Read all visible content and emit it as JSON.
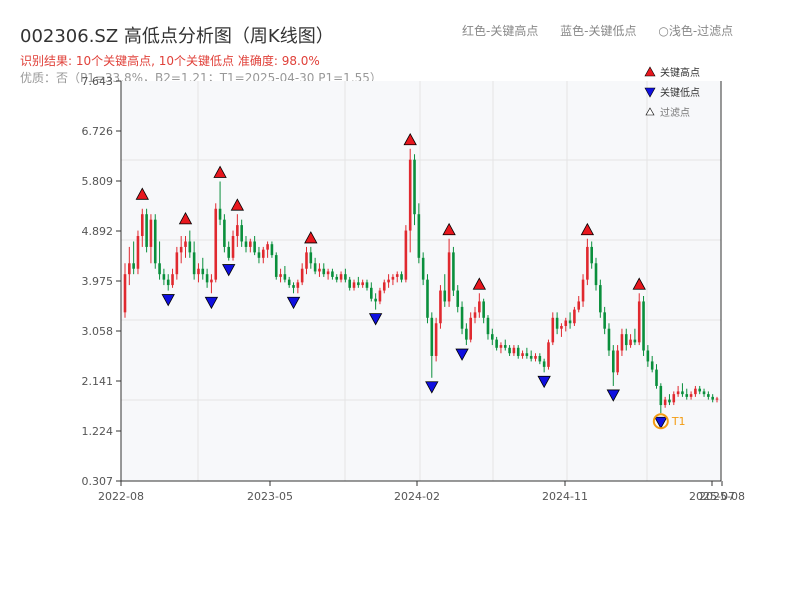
{
  "header": {
    "title": "002306.SZ 高低点分析图（周K线图）",
    "result_line": "识别结果: 10个关键高点, 10个关键低点   准确度: 98.0%",
    "quality_line": "优质：否（P1=33.8%，B2=1.21；T1=2025-04-30 P1=1.55）"
  },
  "top_legend": {
    "red": "红色-关键高点",
    "blue": "蓝色-关键低点",
    "light": "○浅色-过滤点"
  },
  "colors": {
    "up": "#e0292f",
    "down": "#0a8f3c",
    "high_marker": "#e8171e",
    "low_marker": "#1010e0",
    "t1_ring": "#f39c12",
    "grid": "#e4e4e4",
    "plot_bg": "#f7f8fa"
  },
  "chart_data": {
    "type": "candlestick",
    "title": "002306.SZ 高低点分析图（周K线图）",
    "y_ticks": [
      "0.307",
      "1.224",
      "2.141",
      "3.058",
      "3.975",
      "4.892",
      "5.809",
      "6.726",
      "7.643"
    ],
    "ylim": [
      0.307,
      7.643
    ],
    "x_ticks": [
      "2022-08",
      "2023-05",
      "2024-02",
      "2024-11",
      "2025-07",
      "2025-08"
    ],
    "legend": [
      {
        "label": "关键高点",
        "marker": "high"
      },
      {
        "label": "关键低点",
        "marker": "low"
      },
      {
        "label": "过滤点",
        "marker": "filtered"
      }
    ],
    "key_highs": [
      5.4,
      4.95,
      5.8,
      5.2,
      4.6,
      6.4,
      4.75,
      3.75,
      4.75,
      3.75
    ],
    "key_lows": [
      3.8,
      3.75,
      4.35,
      3.75,
      3.45,
      2.2,
      2.8,
      2.3,
      2.05,
      1.55
    ],
    "annotation": {
      "label": "T1",
      "value": 1.55
    },
    "candles_ohlc": [
      [
        3.4,
        4.3,
        3.3,
        4.1
      ],
      [
        4.1,
        4.6,
        3.9,
        4.3
      ],
      [
        4.3,
        4.7,
        4.1,
        4.2
      ],
      [
        4.2,
        4.9,
        4.1,
        4.8
      ],
      [
        4.8,
        5.3,
        4.6,
        5.2
      ],
      [
        5.2,
        5.3,
        4.5,
        4.6
      ],
      [
        4.6,
        5.2,
        4.3,
        5.1
      ],
      [
        5.1,
        5.2,
        4.2,
        4.3
      ],
      [
        4.3,
        4.7,
        4.0,
        4.1
      ],
      [
        4.1,
        4.2,
        3.9,
        4.0
      ],
      [
        4.0,
        4.1,
        3.8,
        3.9
      ],
      [
        3.9,
        4.2,
        3.85,
        4.1
      ],
      [
        4.1,
        4.6,
        4.0,
        4.5
      ],
      [
        4.5,
        4.8,
        4.3,
        4.6
      ],
      [
        4.6,
        4.8,
        4.4,
        4.7
      ],
      [
        4.7,
        4.9,
        4.4,
        4.5
      ],
      [
        4.5,
        4.7,
        4.0,
        4.1
      ],
      [
        4.1,
        4.3,
        3.95,
        4.2
      ],
      [
        4.2,
        4.4,
        4.0,
        4.1
      ],
      [
        4.1,
        4.2,
        3.85,
        3.95
      ],
      [
        3.95,
        4.1,
        3.75,
        4.0
      ],
      [
        4.0,
        5.4,
        3.95,
        5.3
      ],
      [
        5.3,
        5.8,
        5.0,
        5.1
      ],
      [
        5.1,
        5.2,
        4.5,
        4.6
      ],
      [
        4.6,
        4.7,
        4.35,
        4.4
      ],
      [
        4.4,
        4.9,
        4.35,
        4.8
      ],
      [
        4.8,
        5.2,
        4.6,
        5.0
      ],
      [
        5.0,
        5.1,
        4.6,
        4.7
      ],
      [
        4.7,
        4.8,
        4.5,
        4.6
      ],
      [
        4.6,
        4.75,
        4.5,
        4.7
      ],
      [
        4.7,
        4.8,
        4.45,
        4.5
      ],
      [
        4.5,
        4.6,
        4.3,
        4.4
      ],
      [
        4.4,
        4.6,
        4.3,
        4.55
      ],
      [
        4.55,
        4.7,
        4.4,
        4.65
      ],
      [
        4.65,
        4.7,
        4.4,
        4.45
      ],
      [
        4.45,
        4.5,
        4.0,
        4.05
      ],
      [
        4.05,
        4.2,
        3.95,
        4.1
      ],
      [
        4.1,
        4.25,
        3.95,
        4.0
      ],
      [
        4.0,
        4.05,
        3.85,
        3.9
      ],
      [
        3.9,
        3.95,
        3.75,
        3.85
      ],
      [
        3.85,
        4.0,
        3.75,
        3.95
      ],
      [
        3.95,
        4.3,
        3.9,
        4.2
      ],
      [
        4.2,
        4.6,
        4.1,
        4.5
      ],
      [
        4.5,
        4.6,
        4.2,
        4.3
      ],
      [
        4.3,
        4.4,
        4.1,
        4.15
      ],
      [
        4.15,
        4.3,
        4.05,
        4.2
      ],
      [
        4.2,
        4.3,
        4.05,
        4.1
      ],
      [
        4.1,
        4.2,
        4.0,
        4.15
      ],
      [
        4.15,
        4.2,
        4.0,
        4.05
      ],
      [
        4.05,
        4.1,
        3.95,
        4.0
      ],
      [
        4.0,
        4.15,
        3.95,
        4.1
      ],
      [
        4.1,
        4.2,
        3.95,
        4.0
      ],
      [
        4.0,
        4.05,
        3.8,
        3.85
      ],
      [
        3.85,
        4.0,
        3.8,
        3.95
      ],
      [
        3.95,
        4.05,
        3.85,
        3.9
      ],
      [
        3.9,
        4.0,
        3.85,
        3.95
      ],
      [
        3.95,
        4.0,
        3.8,
        3.85
      ],
      [
        3.85,
        3.95,
        3.6,
        3.65
      ],
      [
        3.65,
        3.75,
        3.45,
        3.6
      ],
      [
        3.6,
        3.85,
        3.55,
        3.8
      ],
      [
        3.8,
        4.0,
        3.75,
        3.95
      ],
      [
        3.95,
        4.1,
        3.85,
        4.0
      ],
      [
        4.0,
        4.1,
        3.9,
        4.05
      ],
      [
        4.05,
        4.15,
        3.95,
        4.1
      ],
      [
        4.1,
        4.15,
        3.95,
        4.0
      ],
      [
        4.0,
        5.0,
        3.95,
        4.9
      ],
      [
        4.9,
        6.4,
        4.5,
        6.2
      ],
      [
        6.2,
        6.3,
        5.0,
        5.2
      ],
      [
        5.2,
        5.4,
        4.3,
        4.4
      ],
      [
        4.4,
        4.5,
        3.9,
        4.0
      ],
      [
        4.0,
        4.1,
        3.2,
        3.3
      ],
      [
        3.3,
        3.4,
        2.2,
        2.6
      ],
      [
        2.6,
        3.3,
        2.5,
        3.2
      ],
      [
        3.2,
        3.9,
        3.1,
        3.8
      ],
      [
        3.8,
        4.1,
        3.5,
        3.6
      ],
      [
        3.6,
        4.75,
        3.5,
        4.5
      ],
      [
        4.5,
        4.6,
        3.7,
        3.8
      ],
      [
        3.8,
        3.9,
        3.4,
        3.5
      ],
      [
        3.5,
        3.6,
        3.0,
        3.1
      ],
      [
        3.1,
        3.2,
        2.8,
        2.9
      ],
      [
        2.9,
        3.4,
        2.85,
        3.3
      ],
      [
        3.3,
        3.5,
        3.2,
        3.4
      ],
      [
        3.4,
        3.75,
        3.3,
        3.6
      ],
      [
        3.6,
        3.65,
        3.2,
        3.3
      ],
      [
        3.3,
        3.35,
        2.9,
        3.0
      ],
      [
        3.0,
        3.1,
        2.8,
        2.9
      ],
      [
        2.9,
        2.95,
        2.7,
        2.75
      ],
      [
        2.75,
        2.85,
        2.65,
        2.8
      ],
      [
        2.8,
        2.9,
        2.7,
        2.75
      ],
      [
        2.75,
        2.8,
        2.6,
        2.65
      ],
      [
        2.65,
        2.8,
        2.6,
        2.75
      ],
      [
        2.75,
        2.8,
        2.55,
        2.6
      ],
      [
        2.6,
        2.7,
        2.55,
        2.65
      ],
      [
        2.65,
        2.75,
        2.55,
        2.6
      ],
      [
        2.6,
        2.7,
        2.5,
        2.55
      ],
      [
        2.55,
        2.65,
        2.5,
        2.6
      ],
      [
        2.6,
        2.65,
        2.45,
        2.5
      ],
      [
        2.5,
        2.55,
        2.3,
        2.4
      ],
      [
        2.4,
        2.9,
        2.35,
        2.85
      ],
      [
        2.85,
        3.4,
        2.8,
        3.3
      ],
      [
        3.3,
        3.4,
        3.0,
        3.1
      ],
      [
        3.1,
        3.2,
        2.95,
        3.15
      ],
      [
        3.15,
        3.3,
        3.05,
        3.25
      ],
      [
        3.25,
        3.4,
        3.1,
        3.2
      ],
      [
        3.2,
        3.5,
        3.15,
        3.45
      ],
      [
        3.45,
        3.7,
        3.4,
        3.6
      ],
      [
        3.6,
        4.1,
        3.5,
        4.0
      ],
      [
        4.0,
        4.75,
        3.9,
        4.6
      ],
      [
        4.6,
        4.7,
        4.2,
        4.3
      ],
      [
        4.3,
        4.4,
        3.8,
        3.9
      ],
      [
        3.9,
        4.0,
        3.3,
        3.4
      ],
      [
        3.4,
        3.5,
        3.0,
        3.1
      ],
      [
        3.1,
        3.2,
        2.6,
        2.7
      ],
      [
        2.7,
        2.8,
        2.05,
        2.3
      ],
      [
        2.3,
        2.8,
        2.25,
        2.7
      ],
      [
        2.7,
        3.1,
        2.6,
        3.0
      ],
      [
        3.0,
        3.1,
        2.7,
        2.8
      ],
      [
        2.8,
        3.0,
        2.75,
        2.9
      ],
      [
        2.9,
        3.1,
        2.8,
        2.85
      ],
      [
        2.85,
        3.75,
        2.8,
        3.6
      ],
      [
        3.6,
        3.7,
        2.6,
        2.7
      ],
      [
        2.7,
        2.8,
        2.4,
        2.5
      ],
      [
        2.5,
        2.6,
        2.3,
        2.35
      ],
      [
        2.35,
        2.45,
        2.0,
        2.05
      ],
      [
        2.05,
        2.1,
        1.55,
        1.7
      ],
      [
        1.7,
        1.85,
        1.65,
        1.8
      ],
      [
        1.8,
        1.9,
        1.7,
        1.75
      ],
      [
        1.75,
        1.95,
        1.7,
        1.9
      ],
      [
        1.9,
        2.05,
        1.85,
        1.95
      ],
      [
        1.95,
        2.1,
        1.85,
        1.9
      ],
      [
        1.9,
        2.0,
        1.8,
        1.85
      ],
      [
        1.85,
        1.95,
        1.8,
        1.9
      ],
      [
        1.9,
        2.05,
        1.85,
        2.0
      ],
      [
        2.0,
        2.05,
        1.9,
        1.95
      ],
      [
        1.95,
        2.0,
        1.85,
        1.9
      ],
      [
        1.9,
        1.95,
        1.8,
        1.85
      ],
      [
        1.85,
        1.9,
        1.75,
        1.8
      ],
      [
        1.8,
        1.85,
        1.75,
        1.82
      ]
    ]
  }
}
